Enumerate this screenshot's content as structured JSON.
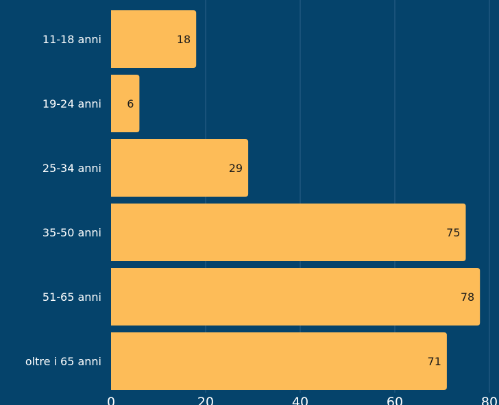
{
  "chart_data": {
    "type": "bar",
    "orientation": "horizontal",
    "categories": [
      "11-18 anni",
      "19-24 anni",
      "25-34 anni",
      "35-50 anni",
      "51-65 anni",
      "oltre i 65 anni"
    ],
    "values": [
      18,
      6,
      29,
      75,
      78,
      71
    ],
    "value_labels": [
      "18",
      "6",
      "29",
      "75",
      "78",
      "71"
    ],
    "x_ticks": [
      "0",
      "20",
      "40",
      "60",
      "80"
    ],
    "xlim": [
      0,
      80
    ],
    "title": "",
    "xlabel": "",
    "ylabel": "",
    "grid": true,
    "colors": {
      "background": "#05436b",
      "bar": "#fdbc58",
      "grid": "#2d6188",
      "axis_text": "#ffffff",
      "bar_label": "#1a1a1a"
    }
  }
}
